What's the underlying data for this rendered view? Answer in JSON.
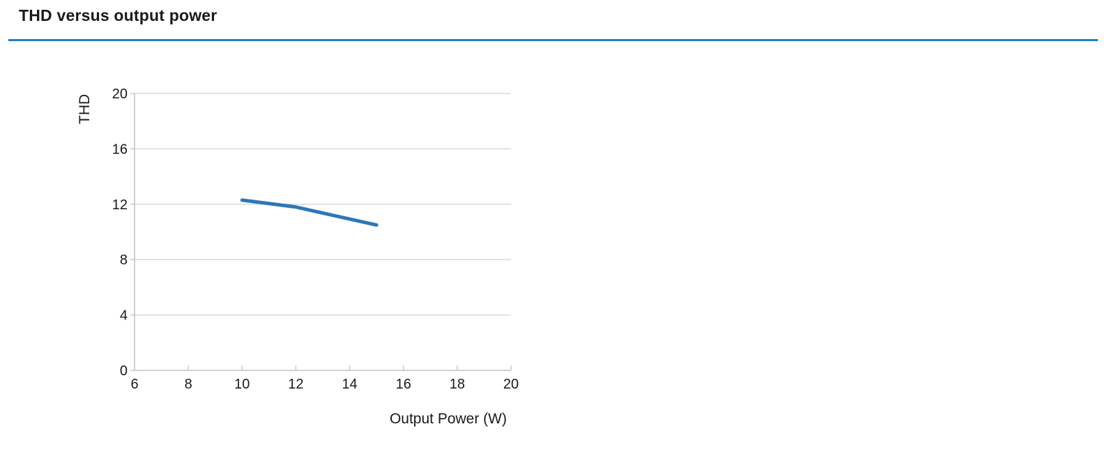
{
  "page": {
    "title": "THD versus output power",
    "background_color": "#ffffff",
    "rule_color": "#1f7fc4",
    "text_color": "#1a1a1a"
  },
  "chart_data": {
    "type": "line",
    "title": "THD versus output power",
    "xlabel": "Output Power (W)",
    "ylabel": "THD",
    "xlim": [
      6,
      20
    ],
    "ylim": [
      0,
      20
    ],
    "xticks": [
      6,
      8,
      10,
      12,
      14,
      16,
      18,
      20
    ],
    "yticks": [
      0,
      4,
      8,
      12,
      16,
      20
    ],
    "grid": "horizontal-only",
    "legend": "none",
    "series": [
      {
        "name": "THD",
        "x": [
          10,
          12,
          15
        ],
        "y": [
          12.3,
          11.8,
          10.5
        ],
        "color": "#2e77b8",
        "line_width": 5
      }
    ],
    "grid_color": "#d9d9d9",
    "spine_color": "#c2c2c2",
    "tick_color": "#c9c9c9",
    "tick_label_color": "#1a1a1a"
  }
}
